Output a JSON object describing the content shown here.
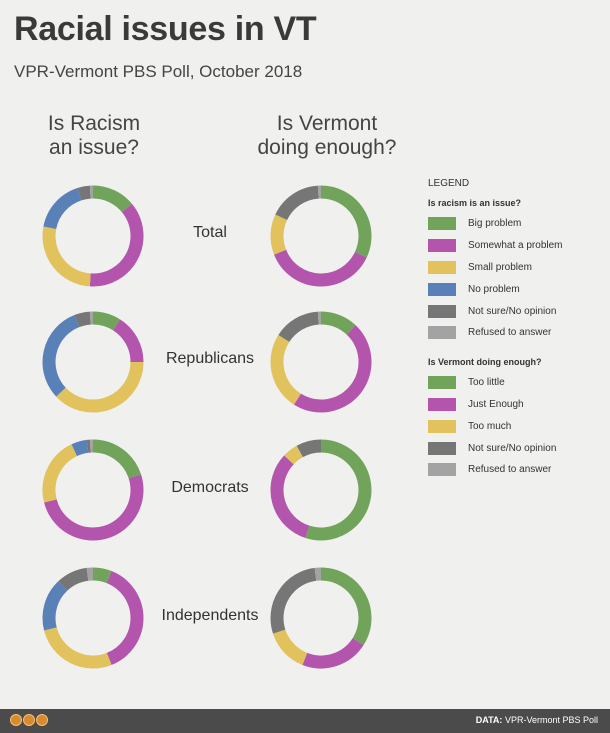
{
  "title": "Racial issues in VT",
  "subtitle": "VPR-Vermont PBS Poll, October 2018",
  "columns": {
    "left": {
      "line1": "Is Racism",
      "line2": "an issue?"
    },
    "right": {
      "line1": "Is Vermont",
      "line2": "doing enough?"
    }
  },
  "rows": [
    "Total",
    "Republicans",
    "Democrats",
    "Independents"
  ],
  "legend": {
    "title": "LEGEND",
    "group1": {
      "title": "Is racism is an issue?",
      "items": [
        "Big problem",
        "Somewhat a problem",
        "Small problem",
        "No problem",
        "Not sure/No opinion",
        "Refused to answer"
      ]
    },
    "group2": {
      "title": "Is Vermont doing enough?",
      "items": [
        "Too little",
        "Just Enough",
        "Too much",
        "Not sure/No opinion",
        "Refused to answer"
      ]
    }
  },
  "colors": {
    "green": "#72a35a",
    "magenta": "#b455ad",
    "yellow": "#e1c25c",
    "blue": "#5a80b8",
    "dark_gray": "#767676",
    "light_gray": "#a3a3a3"
  },
  "chart_data": [
    {
      "type": "pie",
      "question": "Is Racism an issue?",
      "categories": [
        "Big problem",
        "Somewhat a problem",
        "Small problem",
        "No problem",
        "Not sure/No opinion",
        "Refused to answer"
      ],
      "colors": [
        "#72a35a",
        "#b455ad",
        "#e1c25c",
        "#5a80b8",
        "#767676",
        "#a3a3a3"
      ],
      "series": [
        {
          "name": "Total",
          "values": [
            14,
            37,
            27,
            17,
            4,
            1
          ]
        },
        {
          "name": "Republicans",
          "values": [
            9,
            16,
            38,
            31,
            5,
            1
          ]
        },
        {
          "name": "Democrats",
          "values": [
            20,
            51,
            22,
            5,
            1,
            1
          ]
        },
        {
          "name": "Independents",
          "values": [
            6,
            38,
            27,
            17,
            10,
            2
          ]
        }
      ]
    },
    {
      "type": "pie",
      "question": "Is Vermont doing enough?",
      "categories": [
        "Too little",
        "Just Enough",
        "Too much",
        "Not sure/No opinion",
        "Refused to answer"
      ],
      "colors": [
        "#72a35a",
        "#b455ad",
        "#e1c25c",
        "#767676",
        "#a3a3a3"
      ],
      "series": [
        {
          "name": "Total",
          "values": [
            32,
            37,
            13,
            17,
            1
          ]
        },
        {
          "name": "Republicans",
          "values": [
            12,
            47,
            25,
            15,
            1
          ]
        },
        {
          "name": "Democrats",
          "values": [
            55,
            32,
            5,
            8,
            0
          ]
        },
        {
          "name": "Independents",
          "values": [
            34,
            22,
            14,
            28,
            2
          ]
        }
      ]
    }
  ],
  "footer": {
    "source_label": "DATA:",
    "source_text": "VPR-Vermont PBS Poll"
  }
}
